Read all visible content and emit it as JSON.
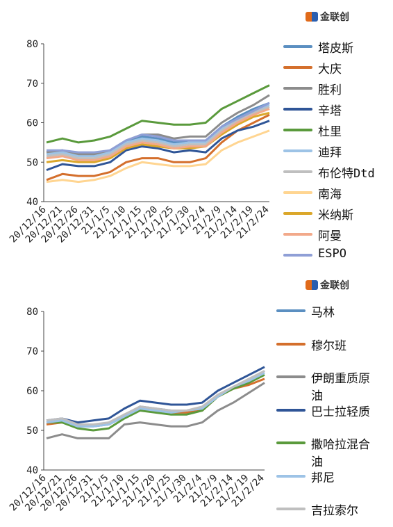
{
  "logos": [
    "金联创",
    "金联创"
  ],
  "chart_data": [
    {
      "type": "line",
      "legend": "right",
      "ylim": [
        40,
        80
      ],
      "yticks": [
        40,
        50,
        60,
        70,
        80
      ],
      "categories": [
        "20/12/16",
        "20/12/21",
        "20/12/26",
        "20/12/31",
        "21/1/5",
        "21/1/10",
        "21/1/15",
        "21/1/20",
        "21/1/25",
        "21/1/30",
        "21/2/4",
        "21/2/9",
        "21/2/14",
        "21/2/19",
        "21/2/24"
      ],
      "series": [
        {
          "name": "塔皮斯",
          "color": "#5b8fc1",
          "values": [
            52.5,
            53,
            52,
            52,
            53,
            55.5,
            56.5,
            56,
            55,
            55.5,
            55.5,
            59,
            61.5,
            63.5,
            65
          ]
        },
        {
          "name": "大庆",
          "color": "#d46f2c",
          "values": [
            45.5,
            47,
            46.5,
            46.5,
            47.5,
            50,
            51,
            51,
            50,
            50,
            51,
            55,
            58,
            60,
            62
          ]
        },
        {
          "name": "胜利",
          "color": "#8c8c8c",
          "values": [
            52.5,
            53,
            52,
            52,
            53,
            55.5,
            57,
            57,
            56,
            56.5,
            56.5,
            60,
            62.5,
            64.5,
            67
          ]
        },
        {
          "name": "辛塔",
          "color": "#2f5597",
          "values": [
            48,
            49.5,
            49,
            49,
            50,
            53,
            54,
            53.5,
            52.5,
            53,
            52.5,
            56,
            58,
            59,
            60.5
          ]
        },
        {
          "name": "杜里",
          "color": "#5a9a3c",
          "values": [
            55,
            56,
            55,
            55.5,
            56.5,
            58.5,
            60.5,
            60,
            59.5,
            59.5,
            60,
            63.5,
            65.5,
            67.5,
            69.5
          ]
        },
        {
          "name": "迪拜",
          "color": "#9dc3e6",
          "values": [
            52,
            52.5,
            51.5,
            51.5,
            52.5,
            55,
            56,
            55.5,
            54.5,
            55,
            55,
            58.5,
            61,
            63,
            64.5
          ]
        },
        {
          "name": "布伦特Dtd",
          "color": "#bfbfbf",
          "values": [
            51.5,
            52,
            51,
            51,
            52,
            54.5,
            55.5,
            55,
            54,
            54.5,
            54.5,
            58,
            60.5,
            62.5,
            64
          ]
        },
        {
          "name": "南海",
          "color": "#ffd591",
          "values": [
            45,
            45.5,
            45,
            45.5,
            46.5,
            48.5,
            50,
            49.5,
            49,
            49,
            49.5,
            53,
            55,
            56.5,
            58
          ]
        },
        {
          "name": "米纳斯",
          "color": "#dba72a",
          "values": [
            50,
            50.5,
            50,
            50,
            51,
            53.5,
            54.5,
            54,
            53.5,
            53.5,
            54,
            57,
            59.5,
            61.5,
            62.5
          ]
        },
        {
          "name": "阿曼",
          "color": "#f2a98a",
          "values": [
            51,
            51.5,
            50.5,
            50.5,
            51.5,
            54,
            55,
            54.5,
            53.5,
            54,
            54,
            57.5,
            60,
            62,
            63.5
          ]
        },
        {
          "name": "ESPO",
          "color": "#8f9fd6",
          "values": [
            53,
            53,
            52.5,
            52.5,
            53,
            55.5,
            57,
            56.5,
            55.5,
            55.5,
            55.5,
            59,
            61,
            63,
            65
          ]
        }
      ]
    },
    {
      "type": "line",
      "legend": "right",
      "ylim": [
        40,
        80
      ],
      "yticks": [
        40,
        50,
        60,
        70,
        80
      ],
      "categories": [
        "20/12/16",
        "20/12/21",
        "20/12/26",
        "20/12/31",
        "21/1/5",
        "21/1/10",
        "21/1/15",
        "21/1/20",
        "21/1/25",
        "21/1/30",
        "21/2/4",
        "21/2/9",
        "21/2/14",
        "21/2/19",
        "21/2/24"
      ],
      "series": [
        {
          "name": "马林",
          "color": "#5b8fc1",
          "values": [
            52,
            52.5,
            51,
            51,
            51.5,
            53.5,
            56,
            55.5,
            55,
            55,
            55.5,
            58.5,
            61,
            62.5,
            65
          ]
        },
        {
          "name": "穆尔班",
          "color": "#d46f2c",
          "values": [
            51.5,
            52,
            51.5,
            51.5,
            51.5,
            54,
            55,
            55,
            54.5,
            54.5,
            55,
            58.5,
            60.5,
            61.5,
            63
          ]
        },
        {
          "name": "伊朗重质原油",
          "color": "#8c8c8c",
          "values": [
            48,
            49,
            48,
            48,
            48,
            51.5,
            52,
            51.5,
            51,
            51,
            52,
            55,
            57,
            59.5,
            62
          ]
        },
        {
          "name": "巴士拉轻质",
          "color": "#2f5597",
          "values": [
            52.5,
            53,
            52,
            52.5,
            53,
            55.5,
            57.5,
            57,
            56.5,
            56.5,
            57,
            60,
            62,
            64,
            66
          ]
        },
        {
          "name": "撒哈拉混合油",
          "color": "#5a9a3c",
          "values": [
            52,
            52,
            50.5,
            50,
            50.5,
            53,
            55,
            54.5,
            54,
            54,
            55,
            58.5,
            60.5,
            62,
            64
          ]
        },
        {
          "name": "邦尼",
          "color": "#9dc3e6",
          "values": [
            52,
            52.5,
            51,
            51,
            51.5,
            53.5,
            55.5,
            55,
            54.5,
            55,
            55.5,
            58.5,
            61,
            62.5,
            64.5
          ]
        },
        {
          "name": "吉拉索尔",
          "color": "#bfbfbf",
          "values": [
            52.5,
            53,
            51.5,
            51.5,
            52,
            54,
            56,
            55.5,
            55,
            55,
            56,
            59,
            61,
            63,
            65
          ]
        }
      ]
    }
  ]
}
